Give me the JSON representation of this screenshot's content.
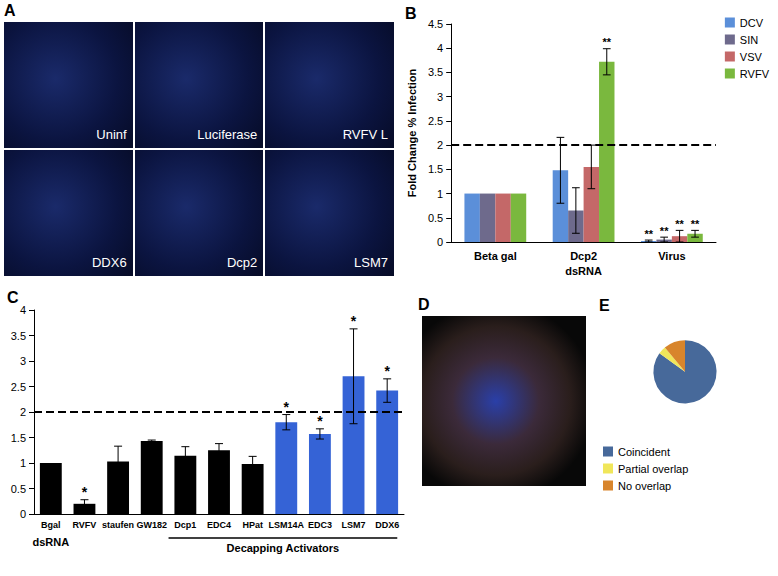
{
  "images": [
    {
      "title": "A",
      "labels": [
        "Uninf",
        "Luciferase",
        "RVFV L",
        "DDX6",
        "Dcp2",
        "LSM7"
      ]
    },
    {
      "title": "D"
    }
  ],
  "chart_data": [
    {
      "type": "bar",
      "title": "B",
      "categories": [
        "Beta gal",
        "Dcp2",
        "Virus"
      ],
      "x_label": "dsRNA",
      "y_label": "Fold Change % Infection",
      "ylim": [
        0,
        4.5
      ],
      "yticks": [
        0,
        0.5,
        1,
        1.5,
        2,
        2.5,
        3,
        3.5,
        4,
        4.5
      ],
      "grid": false,
      "legend": "top-right",
      "reference_line": 2,
      "series": [
        {
          "name": "DCV",
          "color": "#5b8fd9",
          "values": [
            1,
            1.48,
            0.02
          ],
          "errors": [
            0,
            0.68,
            0.02
          ],
          "significance": [
            null,
            null,
            "**"
          ]
        },
        {
          "name": "SIN",
          "color": "#6e6a8c",
          "values": [
            1,
            0.65,
            0.05
          ],
          "errors": [
            0,
            0.47,
            0.05
          ],
          "significance": [
            null,
            null,
            "**"
          ]
        },
        {
          "name": "VSV",
          "color": "#c46868",
          "values": [
            1,
            1.55,
            0.12
          ],
          "errors": [
            0,
            0.45,
            0.12
          ],
          "significance": [
            null,
            null,
            "**"
          ]
        },
        {
          "name": "RVFV",
          "color": "#7ab83e",
          "values": [
            1,
            3.72,
            0.17
          ],
          "errors": [
            0,
            0.27,
            0.07
          ],
          "significance": [
            null,
            "**",
            "**"
          ]
        }
      ]
    },
    {
      "type": "bar",
      "title": "C",
      "categories": [
        "Bgal",
        "RVFV",
        "staufen",
        "GW182",
        "Dcp1",
        "EDC4",
        "HPat",
        "LSM14A",
        "EDC3",
        "LSM7",
        "DDX6"
      ],
      "x_label": "dsRNA",
      "values": [
        1.0,
        0.2,
        1.03,
        1.43,
        1.14,
        1.25,
        0.98,
        1.8,
        1.57,
        2.7,
        2.42
      ],
      "errors": [
        0,
        0.08,
        0.3,
        0.02,
        0.18,
        0.13,
        0.15,
        0.15,
        0.1,
        0.93,
        0.23
      ],
      "significance": [
        null,
        "*",
        null,
        null,
        null,
        null,
        null,
        "*",
        "*",
        "*",
        "*"
      ],
      "colors": [
        "#000000",
        "#000000",
        "#000000",
        "#000000",
        "#000000",
        "#000000",
        "#000000",
        "#3563d6",
        "#3563d6",
        "#3563d6",
        "#3563d6"
      ],
      "ylim": [
        0,
        4
      ],
      "yticks": [
        0,
        0.5,
        1,
        1.5,
        2,
        2.5,
        3,
        3.5,
        4
      ],
      "grid": false,
      "reference_line": 2,
      "group": {
        "label": "Decapping Activators",
        "from": "Dcp1",
        "to": "DDX6"
      }
    },
    {
      "type": "pie",
      "title": "E",
      "categories": [
        "Coincident",
        "Partial overlap",
        "No overlap"
      ],
      "values": [
        85,
        4,
        11
      ],
      "colors": [
        "#47699a",
        "#f0e65a",
        "#d8852c"
      ],
      "legend": "bottom-left"
    }
  ]
}
